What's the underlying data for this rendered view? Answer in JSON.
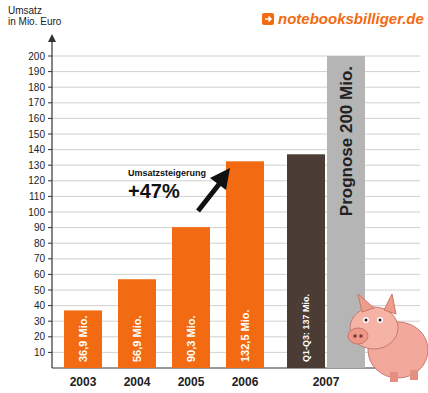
{
  "chart_data": {
    "type": "bar",
    "logo": "notebooksbilliger.de",
    "y_label": [
      "Umsatz",
      "in Mio. Euro"
    ],
    "categories": [
      "2003",
      "2004",
      "2005",
      "2006",
      "2007"
    ],
    "series": [
      {
        "colors": [
          "#f26b12",
          "#f26b12",
          "#f26b12",
          "#f26b12",
          "#4b3d36"
        ],
        "values": [
          36.9,
          56.9,
          90.3,
          132.5,
          137
        ],
        "value_labels": [
          "36,9 Mio.",
          "56,9 Mio.",
          "90,3 Mio.",
          "132,5 Mio.",
          "Q1-Q3: 137 Mio."
        ]
      },
      {
        "color": "#b5b5b5",
        "values": [
          null,
          null,
          null,
          null,
          200
        ],
        "value_labels": [
          null,
          null,
          null,
          null,
          "Prognose 200 Mio."
        ]
      }
    ],
    "annotation": {
      "title": "Umsatzsteigerung",
      "text": "+47%"
    },
    "ylim": [
      0,
      200
    ],
    "yticks": [
      10,
      20,
      30,
      40,
      50,
      60,
      70,
      80,
      90,
      100,
      110,
      120,
      130,
      140,
      150,
      160,
      170,
      180,
      190,
      200
    ],
    "grid": true,
    "data_labels": true
  }
}
